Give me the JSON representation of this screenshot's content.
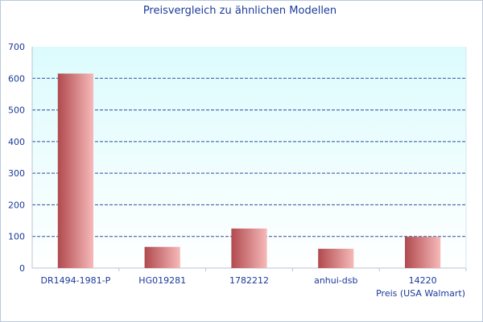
{
  "chart_data": {
    "type": "bar",
    "title": "Preisvergleich zu ähnlichen Modellen",
    "xlabel": "Preis (USA Walmart)",
    "ylabel": "",
    "categories": [
      "DR1494-1981-P",
      "HG019281",
      "1782212",
      "anhui-dsb",
      "14220"
    ],
    "values": [
      615,
      67,
      125,
      61,
      99
    ],
    "ylim": [
      0,
      700
    ],
    "yticks": [
      0,
      100,
      200,
      300,
      400,
      500,
      600,
      700
    ],
    "grid": true,
    "legend": "none",
    "colors": {
      "bar_dark": "#b04a4e",
      "bar_light": "#f7b9b9",
      "plot_bg_top": "#dcfbfd",
      "plot_bg_bottom": "#ffffff",
      "grid": "#2b4d9e",
      "text": "#1a3a9a"
    }
  }
}
